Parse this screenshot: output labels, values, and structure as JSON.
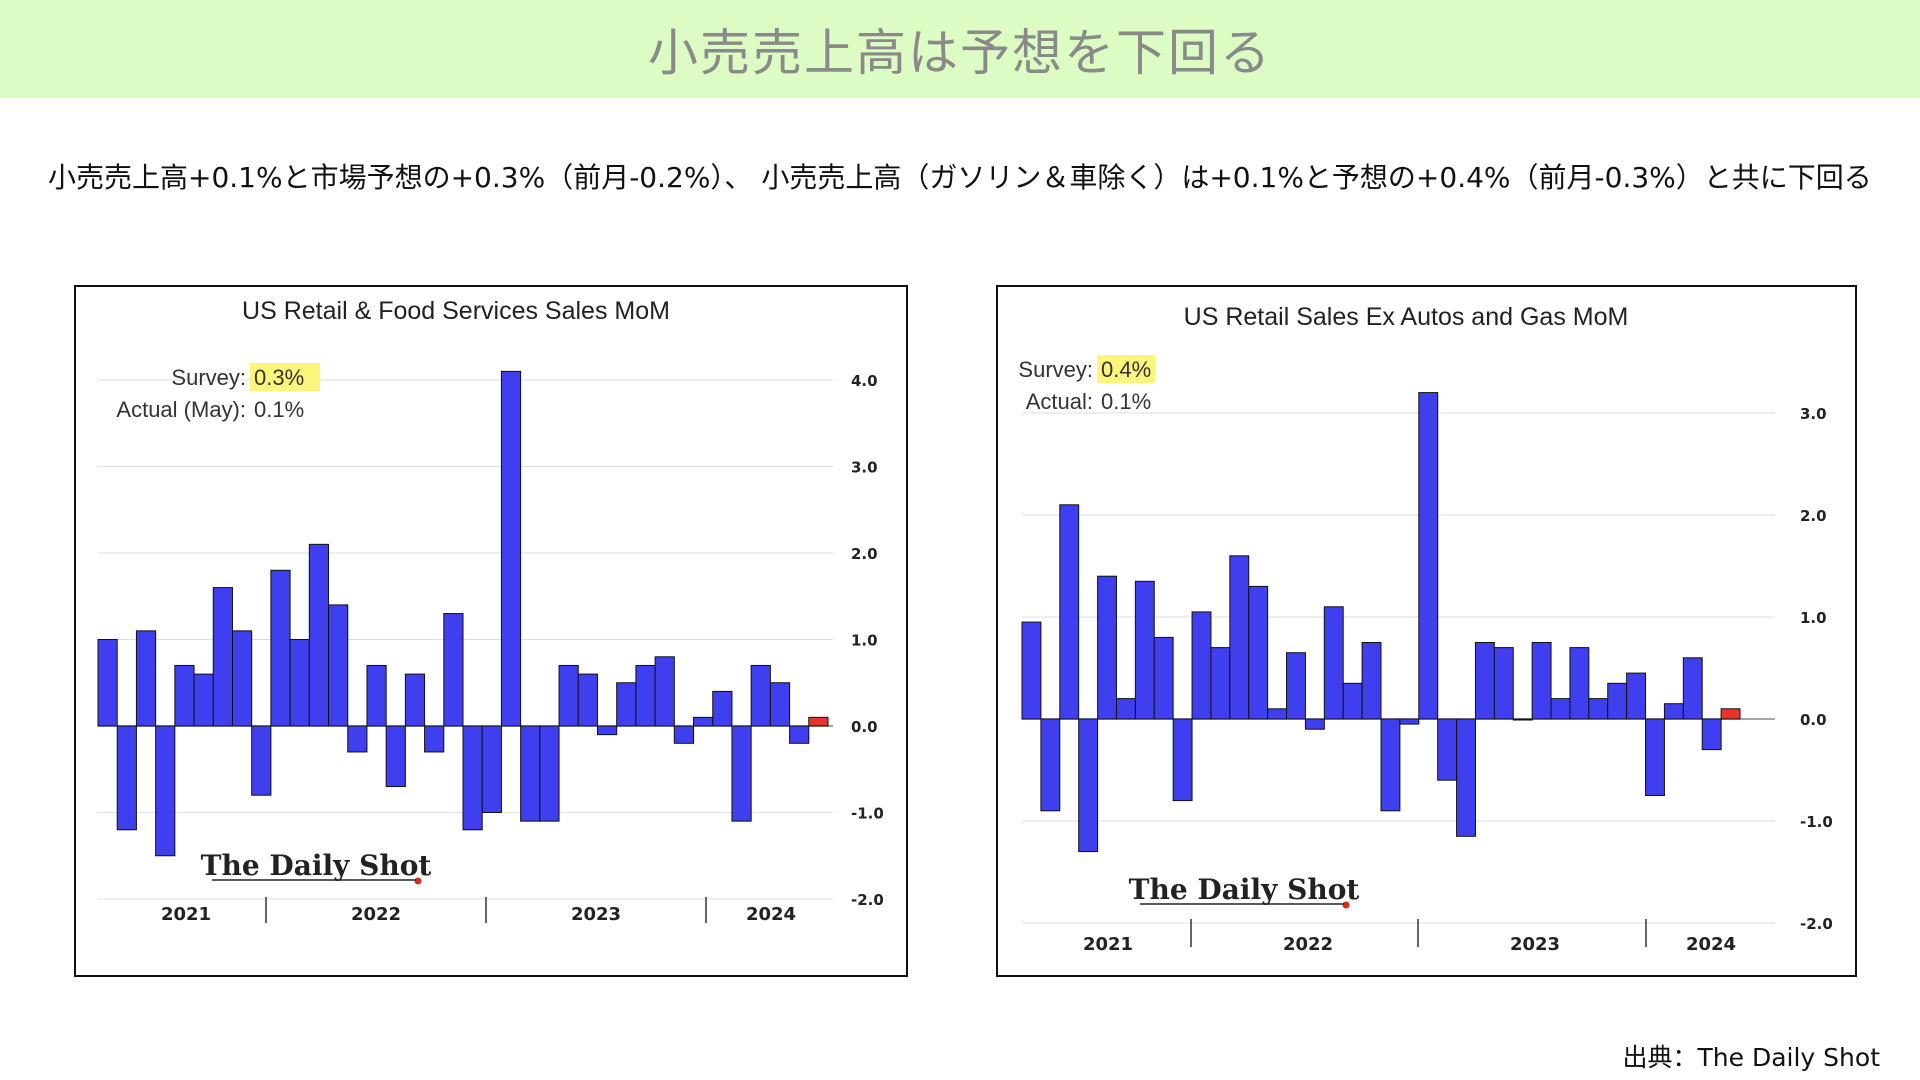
{
  "header": {
    "title": "小売売上高は予想を下回る"
  },
  "summary": "小売売上高+0.1%と市場予想の+0.3%（前月-0.2%）、 小売売上高（ガソリン＆車除く）は+0.1%と予想の+0.4%（前月-0.3%）と共に下回る",
  "source": "出典：The Daily Shot",
  "colors": {
    "bar": "#3f3fef",
    "latest": "#e8352a",
    "highlight": "#fbf57a",
    "grid": "#dddddd"
  },
  "chart_data": [
    {
      "type": "bar",
      "title": "US Retail & Food Services Sales MoM",
      "survey_label": "Survey:",
      "survey_value": "0.3%",
      "actual_label": "Actual (May):",
      "actual_value": "0.1%",
      "watermark": "The Daily Shot",
      "ylim": [
        -2.0,
        4.3
      ],
      "yticks": [
        "4.0",
        "3.0",
        "2.0",
        "1.0",
        "0.0",
        "-1.0",
        "-2.0"
      ],
      "grid": true,
      "year_labels": [
        "2021",
        "2022",
        "2023",
        "2024"
      ],
      "values": [
        1.0,
        -1.2,
        1.1,
        -1.5,
        0.7,
        0.6,
        1.6,
        1.1,
        -0.8,
        1.8,
        1.0,
        2.1,
        1.4,
        -0.3,
        0.7,
        -0.7,
        0.6,
        -0.3,
        1.3,
        -1.2,
        -1.0,
        4.1,
        -1.1,
        -1.1,
        0.7,
        0.6,
        -0.1,
        0.5,
        0.7,
        0.8,
        -0.2,
        0.1,
        0.4,
        -1.1,
        0.7,
        0.5,
        -0.2,
        0.1
      ],
      "latest_highlighted": true
    },
    {
      "type": "bar",
      "title": "US Retail Sales Ex Autos and Gas MoM",
      "survey_label": "Survey:",
      "survey_value": "0.4%",
      "actual_label": "Actual:",
      "actual_value": "0.1%",
      "watermark": "The Daily Shot",
      "ylim": [
        -2.0,
        3.3
      ],
      "yticks": [
        "3.0",
        "2.0",
        "1.0",
        "0.0",
        "-1.0",
        "-2.0"
      ],
      "grid": true,
      "year_labels": [
        "2021",
        "2022",
        "2023",
        "2024"
      ],
      "values": [
        0.95,
        -0.9,
        2.1,
        -1.3,
        1.4,
        0.2,
        1.35,
        0.8,
        -0.8,
        1.05,
        0.7,
        1.6,
        1.3,
        0.1,
        0.65,
        -0.1,
        1.1,
        0.35,
        0.75,
        -0.9,
        -0.05,
        3.2,
        -0.6,
        -1.15,
        0.75,
        0.7,
        0.0,
        0.75,
        0.2,
        0.7,
        0.2,
        0.35,
        0.45,
        -0.75,
        0.15,
        0.6,
        -0.3,
        0.1
      ],
      "latest_highlighted": true
    }
  ]
}
